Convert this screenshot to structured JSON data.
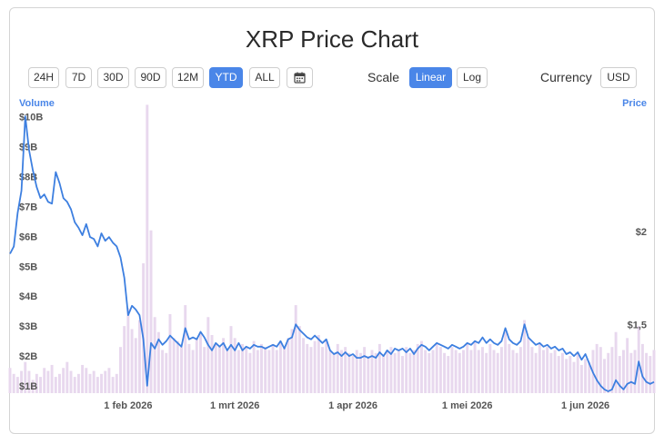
{
  "title": "XRP Price Chart",
  "range_buttons": [
    "24H",
    "7D",
    "30D",
    "90D",
    "12M",
    "YTD",
    "ALL"
  ],
  "active_range": "YTD",
  "calendar_icon": "calendar-icon",
  "scale": {
    "label": "Scale",
    "options": [
      "Linear",
      "Log"
    ],
    "selected": "Linear"
  },
  "currency": {
    "label": "Currency",
    "value": "USD"
  },
  "colors": {
    "accent": "#4a86e8",
    "price_line": "#3d7fe0",
    "volume_bars": "#e8d8ee"
  },
  "chart_data": {
    "type": "line",
    "left_axis_title": "Volume",
    "right_axis_title": "Price",
    "volume_ticks": [
      "$1B",
      "$2B",
      "$3B",
      "$4B",
      "$5B",
      "$6B",
      "$7B",
      "$8B",
      "$9B",
      "$10B"
    ],
    "volume_tick_values": [
      1,
      2,
      3,
      4,
      5,
      6,
      7,
      8,
      9,
      10
    ],
    "volume_range_billion": [
      1,
      10.2
    ],
    "price_ticks": [
      "$1,5",
      "$2"
    ],
    "price_tick_values": [
      1.5,
      2.0
    ],
    "price_range_usd": [
      1.13,
      2.65
    ],
    "x_ticks": [
      "1 feb 2026",
      "1 mrt 2026",
      "1 apr 2026",
      "1 mei 2026",
      "1 jun 2026"
    ],
    "x_tick_days": [
      31,
      59,
      90,
      120,
      151
    ],
    "x_range_days": [
      0,
      169
    ],
    "grid": false,
    "price_series": [
      {
        "day": 0,
        "price": 1.88
      },
      {
        "day": 1,
        "price": 1.92
      },
      {
        "day": 2,
        "price": 2.1
      },
      {
        "day": 3,
        "price": 2.22
      },
      {
        "day": 4,
        "price": 2.62
      },
      {
        "day": 5,
        "price": 2.44
      },
      {
        "day": 6,
        "price": 2.33
      },
      {
        "day": 7,
        "price": 2.24
      },
      {
        "day": 8,
        "price": 2.18
      },
      {
        "day": 9,
        "price": 2.2
      },
      {
        "day": 10,
        "price": 2.16
      },
      {
        "day": 11,
        "price": 2.15
      },
      {
        "day": 12,
        "price": 2.32
      },
      {
        "day": 13,
        "price": 2.26
      },
      {
        "day": 14,
        "price": 2.18
      },
      {
        "day": 15,
        "price": 2.16
      },
      {
        "day": 16,
        "price": 2.12
      },
      {
        "day": 17,
        "price": 2.05
      },
      {
        "day": 18,
        "price": 2.02
      },
      {
        "day": 19,
        "price": 1.98
      },
      {
        "day": 20,
        "price": 2.04
      },
      {
        "day": 21,
        "price": 1.97
      },
      {
        "day": 22,
        "price": 1.96
      },
      {
        "day": 23,
        "price": 1.92
      },
      {
        "day": 24,
        "price": 1.99
      },
      {
        "day": 25,
        "price": 1.95
      },
      {
        "day": 26,
        "price": 1.97
      },
      {
        "day": 27,
        "price": 1.94
      },
      {
        "day": 28,
        "price": 1.92
      },
      {
        "day": 29,
        "price": 1.86
      },
      {
        "day": 30,
        "price": 1.75
      },
      {
        "day": 31,
        "price": 1.55
      },
      {
        "day": 32,
        "price": 1.6
      },
      {
        "day": 33,
        "price": 1.58
      },
      {
        "day": 34,
        "price": 1.55
      },
      {
        "day": 35,
        "price": 1.42
      },
      {
        "day": 36,
        "price": 1.17
      },
      {
        "day": 37,
        "price": 1.4
      },
      {
        "day": 38,
        "price": 1.37
      },
      {
        "day": 39,
        "price": 1.42
      },
      {
        "day": 40,
        "price": 1.39
      },
      {
        "day": 41,
        "price": 1.41
      },
      {
        "day": 42,
        "price": 1.44
      },
      {
        "day": 43,
        "price": 1.42
      },
      {
        "day": 44,
        "price": 1.4
      },
      {
        "day": 45,
        "price": 1.38
      },
      {
        "day": 46,
        "price": 1.48
      },
      {
        "day": 47,
        "price": 1.42
      },
      {
        "day": 48,
        "price": 1.43
      },
      {
        "day": 49,
        "price": 1.42
      },
      {
        "day": 50,
        "price": 1.46
      },
      {
        "day": 51,
        "price": 1.43
      },
      {
        "day": 52,
        "price": 1.39
      },
      {
        "day": 53,
        "price": 1.36
      },
      {
        "day": 54,
        "price": 1.4
      },
      {
        "day": 55,
        "price": 1.38
      },
      {
        "day": 56,
        "price": 1.4
      },
      {
        "day": 57,
        "price": 1.36
      },
      {
        "day": 58,
        "price": 1.39
      },
      {
        "day": 59,
        "price": 1.36
      },
      {
        "day": 60,
        "price": 1.4
      },
      {
        "day": 61,
        "price": 1.36
      },
      {
        "day": 62,
        "price": 1.38
      },
      {
        "day": 63,
        "price": 1.37
      },
      {
        "day": 64,
        "price": 1.39
      },
      {
        "day": 65,
        "price": 1.38
      },
      {
        "day": 66,
        "price": 1.38
      },
      {
        "day": 67,
        "price": 1.37
      },
      {
        "day": 68,
        "price": 1.38
      },
      {
        "day": 69,
        "price": 1.39
      },
      {
        "day": 70,
        "price": 1.38
      },
      {
        "day": 71,
        "price": 1.41
      },
      {
        "day": 72,
        "price": 1.37
      },
      {
        "day": 73,
        "price": 1.42
      },
      {
        "day": 74,
        "price": 1.43
      },
      {
        "day": 75,
        "price": 1.5
      },
      {
        "day": 76,
        "price": 1.47
      },
      {
        "day": 77,
        "price": 1.45
      },
      {
        "day": 78,
        "price": 1.43
      },
      {
        "day": 79,
        "price": 1.42
      },
      {
        "day": 80,
        "price": 1.44
      },
      {
        "day": 81,
        "price": 1.42
      },
      {
        "day": 82,
        "price": 1.4
      },
      {
        "day": 83,
        "price": 1.42
      },
      {
        "day": 84,
        "price": 1.36
      },
      {
        "day": 85,
        "price": 1.34
      },
      {
        "day": 86,
        "price": 1.35
      },
      {
        "day": 87,
        "price": 1.33
      },
      {
        "day": 88,
        "price": 1.35
      },
      {
        "day": 89,
        "price": 1.33
      },
      {
        "day": 90,
        "price": 1.34
      },
      {
        "day": 91,
        "price": 1.32
      },
      {
        "day": 92,
        "price": 1.32
      },
      {
        "day": 93,
        "price": 1.33
      },
      {
        "day": 94,
        "price": 1.32
      },
      {
        "day": 95,
        "price": 1.33
      },
      {
        "day": 96,
        "price": 1.32
      },
      {
        "day": 97,
        "price": 1.35
      },
      {
        "day": 98,
        "price": 1.33
      },
      {
        "day": 99,
        "price": 1.36
      },
      {
        "day": 100,
        "price": 1.34
      },
      {
        "day": 101,
        "price": 1.37
      },
      {
        "day": 102,
        "price": 1.36
      },
      {
        "day": 103,
        "price": 1.37
      },
      {
        "day": 104,
        "price": 1.35
      },
      {
        "day": 105,
        "price": 1.37
      },
      {
        "day": 106,
        "price": 1.34
      },
      {
        "day": 107,
        "price": 1.37
      },
      {
        "day": 108,
        "price": 1.39
      },
      {
        "day": 109,
        "price": 1.38
      },
      {
        "day": 110,
        "price": 1.36
      },
      {
        "day": 111,
        "price": 1.38
      },
      {
        "day": 112,
        "price": 1.4
      },
      {
        "day": 113,
        "price": 1.39
      },
      {
        "day": 114,
        "price": 1.38
      },
      {
        "day": 115,
        "price": 1.37
      },
      {
        "day": 116,
        "price": 1.39
      },
      {
        "day": 117,
        "price": 1.38
      },
      {
        "day": 118,
        "price": 1.37
      },
      {
        "day": 119,
        "price": 1.38
      },
      {
        "day": 120,
        "price": 1.4
      },
      {
        "day": 121,
        "price": 1.39
      },
      {
        "day": 122,
        "price": 1.41
      },
      {
        "day": 123,
        "price": 1.4
      },
      {
        "day": 124,
        "price": 1.43
      },
      {
        "day": 125,
        "price": 1.4
      },
      {
        "day": 126,
        "price": 1.42
      },
      {
        "day": 127,
        "price": 1.4
      },
      {
        "day": 128,
        "price": 1.39
      },
      {
        "day": 129,
        "price": 1.41
      },
      {
        "day": 130,
        "price": 1.48
      },
      {
        "day": 131,
        "price": 1.42
      },
      {
        "day": 132,
        "price": 1.4
      },
      {
        "day": 133,
        "price": 1.39
      },
      {
        "day": 134,
        "price": 1.41
      },
      {
        "day": 135,
        "price": 1.5
      },
      {
        "day": 136,
        "price": 1.43
      },
      {
        "day": 137,
        "price": 1.41
      },
      {
        "day": 138,
        "price": 1.39
      },
      {
        "day": 139,
        "price": 1.4
      },
      {
        "day": 140,
        "price": 1.38
      },
      {
        "day": 141,
        "price": 1.39
      },
      {
        "day": 142,
        "price": 1.37
      },
      {
        "day": 143,
        "price": 1.38
      },
      {
        "day": 144,
        "price": 1.36
      },
      {
        "day": 145,
        "price": 1.37
      },
      {
        "day": 146,
        "price": 1.34
      },
      {
        "day": 147,
        "price": 1.35
      },
      {
        "day": 148,
        "price": 1.33
      },
      {
        "day": 149,
        "price": 1.35
      },
      {
        "day": 150,
        "price": 1.31
      },
      {
        "day": 151,
        "price": 1.34
      },
      {
        "day": 152,
        "price": 1.29
      },
      {
        "day": 153,
        "price": 1.24
      },
      {
        "day": 154,
        "price": 1.2
      },
      {
        "day": 155,
        "price": 1.17
      },
      {
        "day": 156,
        "price": 1.15
      },
      {
        "day": 157,
        "price": 1.14
      },
      {
        "day": 158,
        "price": 1.15
      },
      {
        "day": 159,
        "price": 1.2
      },
      {
        "day": 160,
        "price": 1.17
      },
      {
        "day": 161,
        "price": 1.15
      },
      {
        "day": 162,
        "price": 1.18
      },
      {
        "day": 163,
        "price": 1.19
      },
      {
        "day": 164,
        "price": 1.18
      },
      {
        "day": 165,
        "price": 1.3
      },
      {
        "day": 166,
        "price": 1.22
      },
      {
        "day": 167,
        "price": 1.19
      },
      {
        "day": 168,
        "price": 1.18
      },
      {
        "day": 169,
        "price": 1.19
      }
    ],
    "volume_billion": [
      1.6,
      1.4,
      1.3,
      1.5,
      1.8,
      1.5,
      1.2,
      1.4,
      1.3,
      1.6,
      1.5,
      1.7,
      1.3,
      1.4,
      1.6,
      1.8,
      1.5,
      1.3,
      1.4,
      1.7,
      1.6,
      1.4,
      1.5,
      1.3,
      1.4,
      1.5,
      1.6,
      1.3,
      1.4,
      2.3,
      3.0,
      3.6,
      2.9,
      2.6,
      3.2,
      5.1,
      10.4,
      6.2,
      3.3,
      2.8,
      2.2,
      2.1,
      3.4,
      2.6,
      2.5,
      2.3,
      3.7,
      2.4,
      2.2,
      2.6,
      2.8,
      2.3,
      3.3,
      2.7,
      2.4,
      2.3,
      2.6,
      2.2,
      3.0,
      2.6,
      2.2,
      2.4,
      2.3,
      2.1,
      2.5,
      2.2,
      2.4,
      2.3,
      2.2,
      2.4,
      2.2,
      2.5,
      2.3,
      2.6,
      2.9,
      3.7,
      3.0,
      2.6,
      2.4,
      2.3,
      2.5,
      2.7,
      2.3,
      2.5,
      2.2,
      2.1,
      2.4,
      2.2,
      2.3,
      2.1,
      2.0,
      2.2,
      2.1,
      2.3,
      2.0,
      2.2,
      2.1,
      2.4,
      2.0,
      2.2,
      2.3,
      2.1,
      2.2,
      2.0,
      2.3,
      2.1,
      2.2,
      2.4,
      2.5,
      2.2,
      2.1,
      2.2,
      2.4,
      2.3,
      2.1,
      2.0,
      2.3,
      2.2,
      2.1,
      2.2,
      2.4,
      2.2,
      2.5,
      2.2,
      2.3,
      2.1,
      2.4,
      2.2,
      2.1,
      2.3,
      2.8,
      2.4,
      2.2,
      2.1,
      2.3,
      3.2,
      2.6,
      2.3,
      2.1,
      2.4,
      2.2,
      2.3,
      2.1,
      2.2,
      2.0,
      2.1,
      1.9,
      2.0,
      1.8,
      2.1,
      1.7,
      1.9,
      1.8,
      2.2,
      2.4,
      2.3,
      1.9,
      2.1,
      2.3,
      2.8,
      2.0,
      2.2,
      2.6,
      2.1,
      2.2,
      3.0,
      2.4,
      2.1,
      2.0,
      2.2
    ]
  }
}
